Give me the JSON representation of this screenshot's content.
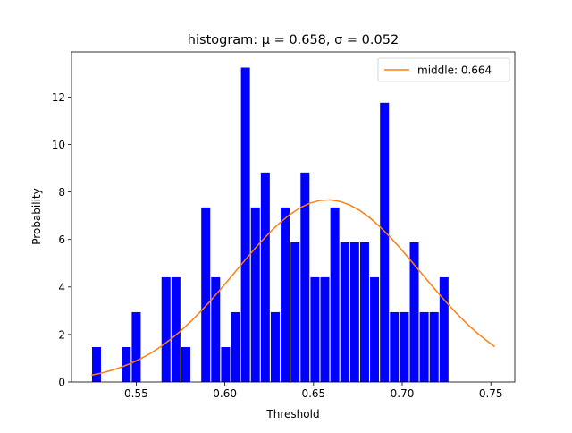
{
  "chart_data": {
    "type": "bar",
    "title": "histogram: μ = 0.658, σ = 0.052",
    "xlabel": "Threshold",
    "ylabel": "Probability",
    "xlim": [
      0.5135,
      0.7635
    ],
    "ylim": [
      0,
      13.9
    ],
    "xticks": [
      0.55,
      0.6,
      0.65,
      0.7,
      0.75
    ],
    "xtick_labels": [
      "0.55",
      "0.60",
      "0.65",
      "0.70",
      "0.75"
    ],
    "yticks": [
      0,
      2,
      4,
      6,
      8,
      10,
      12
    ],
    "ytick_labels": [
      "0",
      "2",
      "4",
      "6",
      "8",
      "10",
      "12"
    ],
    "grid": false,
    "legend_position": "top-right",
    "bin_width": 0.0056,
    "bars": {
      "color": "#0000ff",
      "x_start": [
        0.5248,
        0.5304,
        0.536,
        0.5416,
        0.5472,
        0.5528,
        0.5584,
        0.564,
        0.5696,
        0.5752,
        0.5808,
        0.5864,
        0.592,
        0.5976,
        0.6032,
        0.6088,
        0.6144,
        0.62,
        0.6256,
        0.6312,
        0.6368,
        0.6424,
        0.648,
        0.6536,
        0.6592,
        0.6648,
        0.6704,
        0.676,
        0.6816,
        0.6872,
        0.6928,
        0.6984,
        0.704,
        0.7096,
        0.7152,
        0.7208,
        0.7264,
        0.732,
        0.7376,
        0.7432,
        0.7488
      ],
      "values": [
        1.47,
        0,
        0,
        1.47,
        2.94,
        0,
        0,
        4.41,
        4.41,
        1.47,
        0,
        7.35,
        4.41,
        1.47,
        2.94,
        13.24,
        7.35,
        8.82,
        2.94,
        7.35,
        5.88,
        8.82,
        4.41,
        4.41,
        7.35,
        5.88,
        5.88,
        5.88,
        4.41,
        11.76,
        2.94,
        2.94,
        5.88,
        2.94,
        2.94,
        4.41,
        0,
        0,
        0,
        0,
        0
      ]
    },
    "series": [
      {
        "name": "middle: 0.664",
        "color": "#ff7f0e",
        "mu": 0.658,
        "sigma": 0.052,
        "x": [
          0.5248,
          0.5304,
          0.536,
          0.5416,
          0.5472,
          0.5528,
          0.5584,
          0.564,
          0.5696,
          0.5752,
          0.5808,
          0.5864,
          0.592,
          0.5976,
          0.6032,
          0.6088,
          0.6144,
          0.62,
          0.6256,
          0.6312,
          0.6368,
          0.6424,
          0.648,
          0.6536,
          0.6592,
          0.6648,
          0.6704,
          0.676,
          0.6816,
          0.6872,
          0.6928,
          0.6984,
          0.704,
          0.7096,
          0.7152,
          0.7208,
          0.7264,
          0.732,
          0.7376,
          0.7432,
          0.7488,
          0.7522
        ]
      }
    ]
  }
}
